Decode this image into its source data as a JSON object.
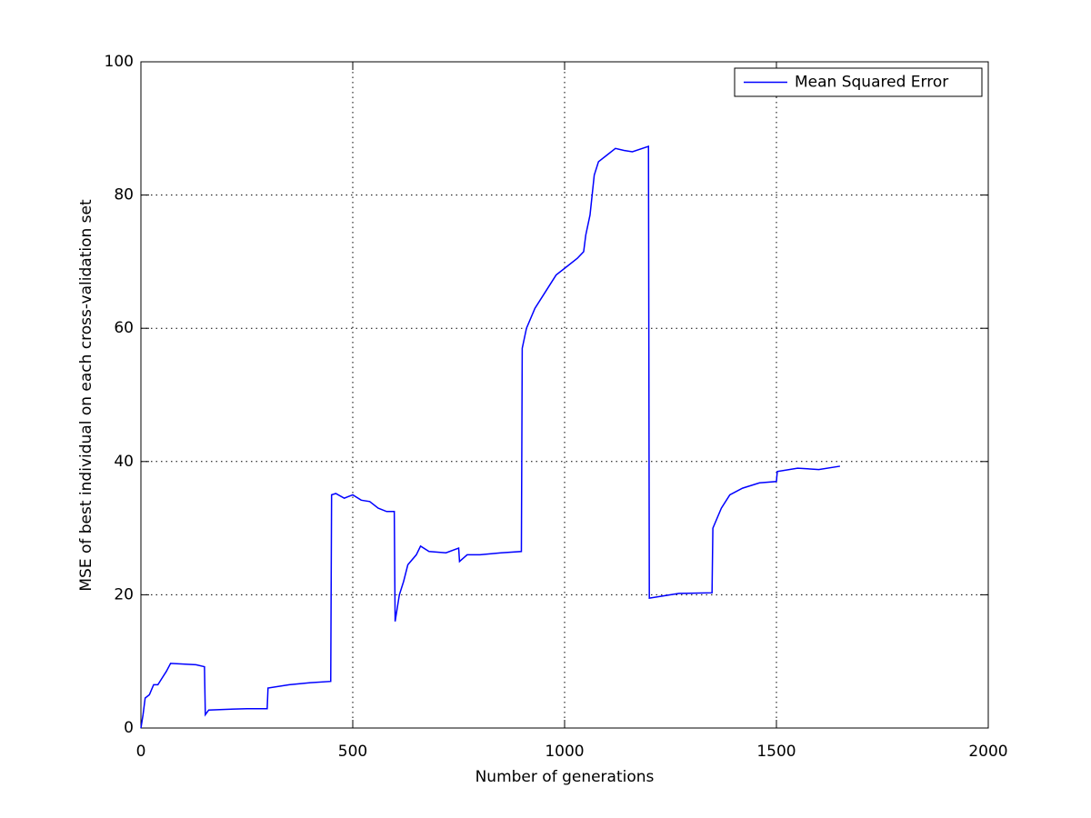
{
  "chart_data": {
    "type": "line",
    "xlabel": "Number of generations",
    "ylabel": "MSE of best individual on each cross-validation set",
    "x": [
      0,
      5,
      10,
      20,
      30,
      40,
      50,
      60,
      70,
      100,
      130,
      150,
      152,
      160,
      200,
      250,
      298,
      300,
      350,
      400,
      448,
      450,
      460,
      480,
      500,
      520,
      540,
      560,
      580,
      598,
      600,
      610,
      620,
      630,
      650,
      660,
      680,
      720,
      750,
      752,
      770,
      800,
      850,
      898,
      900,
      910,
      930,
      950,
      980,
      1000,
      1030,
      1045,
      1050,
      1060,
      1070,
      1080,
      1100,
      1120,
      1140,
      1160,
      1198,
      1200,
      1230,
      1270,
      1348,
      1350,
      1370,
      1390,
      1420,
      1460,
      1500,
      1502,
      1550,
      1600,
      1650
    ],
    "series": [
      {
        "name": "Mean Squared Error",
        "color": "#0000ff",
        "values": [
          0,
          2,
          4.5,
          5,
          6.5,
          6.5,
          7.5,
          8.5,
          9.7,
          9.6,
          9.5,
          9.2,
          2,
          2.7,
          2.8,
          2.9,
          2.9,
          6,
          6.5,
          6.8,
          7,
          35,
          35.2,
          34.5,
          35,
          34.2,
          34,
          33,
          32.5,
          32.5,
          16,
          20,
          22,
          24.5,
          26,
          27.3,
          26.5,
          26.3,
          27,
          25,
          26,
          26,
          26.3,
          26.5,
          57,
          60,
          63,
          65,
          68,
          69,
          70.5,
          71.5,
          74,
          77,
          83,
          85,
          86,
          87,
          86.7,
          86.5,
          87.3,
          19.5,
          19.8,
          20.2,
          20.3,
          30,
          33,
          35,
          36,
          36.8,
          37,
          38.5,
          39,
          38.8,
          39.3
        ]
      }
    ],
    "xlim": [
      0,
      2000
    ],
    "xticks": [
      0,
      500,
      1000,
      1500,
      2000
    ],
    "ylim": [
      0,
      100
    ],
    "yticks": [
      0,
      20,
      40,
      60,
      80,
      100
    ],
    "grid": true,
    "legend": "upper right"
  }
}
